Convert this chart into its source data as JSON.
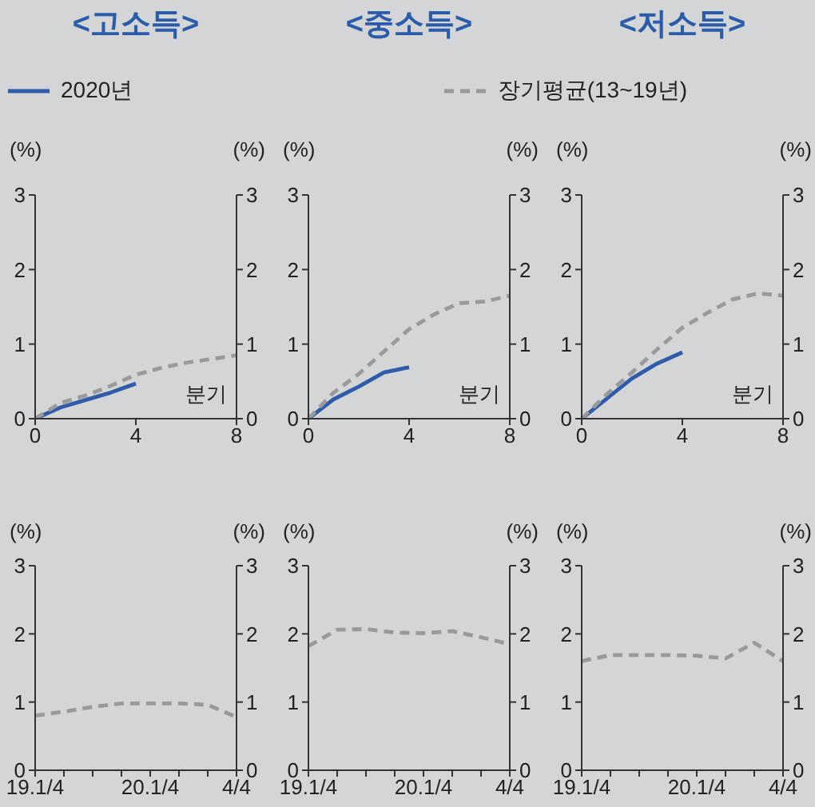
{
  "chart_data": [
    {
      "type": "line",
      "title": "<고소득>",
      "xlabel": "분기",
      "ylabel": "(%)",
      "y2label": "(%)",
      "x": [
        0,
        1,
        2,
        3,
        4,
        5,
        6,
        7,
        8
      ],
      "xlim": [
        0,
        8
      ],
      "xticks": [
        0,
        4,
        8
      ],
      "ylim": [
        0,
        3
      ],
      "yticks": [
        0,
        1,
        2,
        3
      ],
      "y2lim": [
        0,
        3
      ],
      "y2ticks": [
        0,
        1,
        2,
        3
      ],
      "legend": "top",
      "marker": "none",
      "grid": false,
      "series": [
        {
          "name": "2020년",
          "color": "#2e5ca8",
          "line_style": "solid",
          "values": [
            0,
            0.15,
            0.25,
            0.35,
            0.47,
            null,
            null,
            null,
            null
          ]
        },
        {
          "name": "장기평균(13~19년)",
          "color": "#9a9a9c",
          "line_style": "dashed",
          "values": [
            0,
            0.21,
            0.31,
            0.44,
            0.59,
            0.68,
            0.75,
            0.8,
            0.85
          ]
        }
      ]
    },
    {
      "type": "line",
      "title": "<중소득>",
      "xlabel": "분기",
      "ylabel": "(%)",
      "y2label": "(%)",
      "x": [
        0,
        1,
        2,
        3,
        4,
        5,
        6,
        7,
        8
      ],
      "xlim": [
        0,
        8
      ],
      "xticks": [
        0,
        4,
        8
      ],
      "ylim": [
        0,
        3
      ],
      "yticks": [
        0,
        1,
        2,
        3
      ],
      "y2lim": [
        0,
        3
      ],
      "y2ticks": [
        0,
        1,
        2,
        3
      ],
      "marker": "none",
      "grid": false,
      "series": [
        {
          "color": "#2e5ca8",
          "line_style": "solid",
          "values": [
            0,
            0.26,
            0.43,
            0.62,
            0.69,
            null,
            null,
            null,
            null
          ]
        },
        {
          "color": "#9a9a9c",
          "line_style": "dashed",
          "values": [
            0,
            0.35,
            0.6,
            0.9,
            1.2,
            1.4,
            1.55,
            1.57,
            1.65
          ]
        }
      ]
    },
    {
      "type": "line",
      "title": "<저소득>",
      "xlabel": "분기",
      "ylabel": "(%)",
      "y2label": "(%)",
      "x": [
        0,
        1,
        2,
        3,
        4,
        5,
        6,
        7,
        8
      ],
      "xlim": [
        0,
        8
      ],
      "xticks": [
        0,
        4,
        8
      ],
      "ylim": [
        0,
        3
      ],
      "yticks": [
        0,
        1,
        2,
        3
      ],
      "y2lim": [
        0,
        3
      ],
      "y2ticks": [
        0,
        1,
        2,
        3
      ],
      "marker": "none",
      "grid": false,
      "series": [
        {
          "color": "#2e5ca8",
          "line_style": "solid",
          "values": [
            0,
            0.27,
            0.54,
            0.74,
            0.89,
            null,
            null,
            null,
            null
          ]
        },
        {
          "color": "#9a9a9c",
          "line_style": "dashed",
          "values": [
            0,
            0.33,
            0.62,
            0.93,
            1.22,
            1.42,
            1.6,
            1.68,
            1.65
          ]
        }
      ]
    },
    {
      "type": "line",
      "ylabel": "(%)",
      "y2label": "(%)",
      "categories": [
        "19.1/4",
        null,
        null,
        null,
        "20.1/4",
        null,
        null,
        "4/4"
      ],
      "ylim": [
        0,
        3
      ],
      "yticks": [
        0,
        1,
        2,
        3
      ],
      "y2lim": [
        0,
        3
      ],
      "y2ticks": [
        0,
        1,
        2,
        3
      ],
      "marker": "none",
      "grid": false,
      "series": [
        {
          "color": "#9a9a9c",
          "line_style": "dashed",
          "values": [
            0.8,
            0.86,
            0.93,
            0.98,
            0.98,
            0.98,
            0.96,
            0.78
          ]
        }
      ]
    },
    {
      "type": "line",
      "ylabel": "(%)",
      "y2label": "(%)",
      "categories": [
        "19.1/4",
        null,
        null,
        null,
        "20.1/4",
        null,
        null,
        "4/4"
      ],
      "ylim": [
        0,
        3
      ],
      "yticks": [
        0,
        1,
        2,
        3
      ],
      "y2lim": [
        0,
        3
      ],
      "y2ticks": [
        0,
        1,
        2,
        3
      ],
      "marker": "none",
      "grid": false,
      "series": [
        {
          "color": "#9a9a9c",
          "line_style": "dashed",
          "values": [
            1.82,
            2.06,
            2.07,
            2.02,
            2.01,
            2.04,
            1.95,
            1.85
          ]
        }
      ]
    },
    {
      "type": "line",
      "ylabel": "(%)",
      "y2label": "(%)",
      "categories": [
        "19.1/4",
        null,
        null,
        null,
        "20.1/4",
        null,
        null,
        "4/4"
      ],
      "ylim": [
        0,
        3
      ],
      "yticks": [
        0,
        1,
        2,
        3
      ],
      "y2lim": [
        0,
        3
      ],
      "y2ticks": [
        0,
        1,
        2,
        3
      ],
      "marker": "none",
      "grid": false,
      "series": [
        {
          "color": "#9a9a9c",
          "line_style": "dashed",
          "values": [
            1.6,
            1.69,
            1.69,
            1.69,
            1.68,
            1.64,
            1.87,
            1.6
          ]
        }
      ]
    }
  ]
}
